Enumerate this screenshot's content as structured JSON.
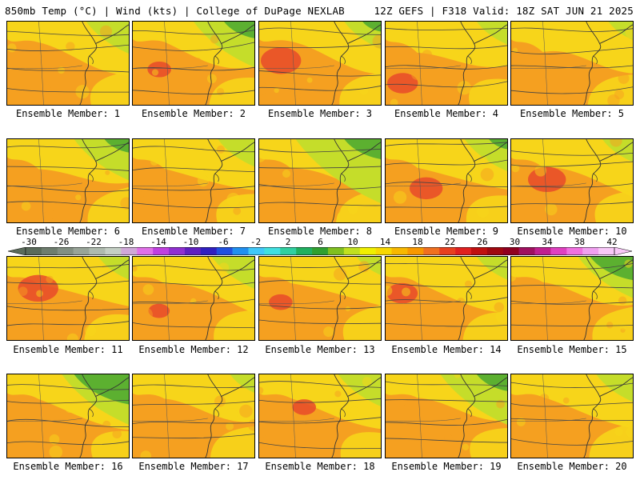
{
  "header": {
    "title_left": "850mb Temp (°C) | Wind (kts) | College of DuPage NEXLAB",
    "title_right": "12Z GEFS | F318 Valid: 18Z SAT JUN 21 2025"
  },
  "panels": [
    {
      "label": "Ensemble Member: 1"
    },
    {
      "label": "Ensemble Member: 2"
    },
    {
      "label": "Ensemble Member: 3"
    },
    {
      "label": "Ensemble Member: 4"
    },
    {
      "label": "Ensemble Member: 5"
    },
    {
      "label": "Ensemble Member: 6"
    },
    {
      "label": "Ensemble Member: 7"
    },
    {
      "label": "Ensemble Member: 8"
    },
    {
      "label": "Ensemble Member: 9"
    },
    {
      "label": "Ensemble Member: 10"
    },
    {
      "label": "Ensemble Member: 11"
    },
    {
      "label": "Ensemble Member: 12"
    },
    {
      "label": "Ensemble Member: 13"
    },
    {
      "label": "Ensemble Member: 14"
    },
    {
      "label": "Ensemble Member: 15"
    },
    {
      "label": "Ensemble Member: 16"
    },
    {
      "label": "Ensemble Member: 17"
    },
    {
      "label": "Ensemble Member: 18"
    },
    {
      "label": "Ensemble Member: 19"
    },
    {
      "label": "Ensemble Member: 20"
    }
  ],
  "colorbar": {
    "labels": [
      "-30",
      "-26",
      "-22",
      "-18",
      "-14",
      "-10",
      "-6",
      "-2",
      "2",
      "6",
      "10",
      "14",
      "18",
      "22",
      "26",
      "30",
      "34",
      "38",
      "42"
    ],
    "colors": [
      "#5a6b5a",
      "#6e7d6e",
      "#828f82",
      "#98a498",
      "#aebaae",
      "#c4cfc4",
      "#d0a8d8",
      "#e070e8",
      "#c040e0",
      "#9030d0",
      "#6020c0",
      "#3020c0",
      "#2050e0",
      "#2090f0",
      "#40c8f8",
      "#40e0e0",
      "#30d0a0",
      "#20b060",
      "#30a030",
      "#80c020",
      "#c0e020",
      "#f0f000",
      "#f8d800",
      "#f8b800",
      "#f89800",
      "#f07020",
      "#e84020",
      "#e02020",
      "#c01010",
      "#a00810",
      "#900020",
      "#a01060",
      "#c02090",
      "#e040c0",
      "#f070e0",
      "#f0a0f0",
      "#f8c8f8"
    ]
  },
  "map_colors": {
    "hot": "#e84a2a",
    "warm": "#f5a020",
    "mild": "#f7d51a",
    "cool": "#c5dd2a",
    "cold": "#5cb030"
  }
}
